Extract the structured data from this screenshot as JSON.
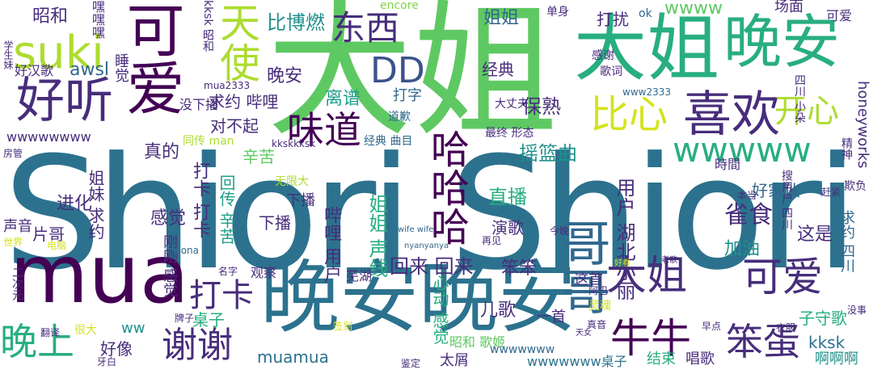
{
  "cloud": {
    "shiori_shiori": "Shiori Shiori",
    "da_jie_big": "大姐",
    "wan_an_tr": "晚安",
    "da_jie_tr": "大姐",
    "mua": "mua",
    "wan_an_wan_an": "晚安晚安",
    "ke_ai_v": "可爱",
    "hao_ting": "好听",
    "tian_shi": "天使",
    "suki": "suki",
    "xi_huan": "喜欢",
    "dong_xi": "东西",
    "dd": "DD",
    "wei_dao": "味道",
    "bi_xin": "比心",
    "kai_xin": "开心",
    "wwwww_mid": "wwwww",
    "ha_ha_ha": "哈哈哈",
    "ge_ge": "哥哥",
    "da_jie_low": "大姐",
    "ke_ai_low": "可爱",
    "niu_niu": "牛牛",
    "ben_dan": "笨蛋",
    "xie_xie": "谢谢",
    "wan_shang": "晚上",
    "da_ka": "打卡",
    "jie_jie": "姐姐",
    "da_rao": "打扰",
    "wwww_top": "wwww",
    "chang_mian": "场面",
    "ke_ai_top": "可爱",
    "bi_bo_ran": "比博燃",
    "zhao_he_tl": "昭和",
    "hei_hei_hei": "嘿嘿嘿",
    "awsl": "awsl",
    "wan_an_small": "晚安",
    "qiu_yue_bili": "求约 哔哩",
    "li_qing": "离谱",
    "da_zi": "打字",
    "bao_shu": "保熟",
    "dui_bu_qi": "对不起",
    "xin_ku": "辛苦",
    "zhen_de": "真的",
    "yao_lan_qu": "摇篮曲",
    "zhi_bo": "直播",
    "jin_hua": "进化",
    "gan_jue": "感觉",
    "da_ka_da_ka": "打卡 打卡",
    "hui_chuan": "回传 辛苦",
    "bili_yonghu": "哔哩 用户",
    "jie_jie_sheng_xian": "姐姐 声线",
    "hui_lai": "回来 回来",
    "ben_ben": "笨笨",
    "yong_hu_hubei": "用户 湖北小丽",
    "que_shi": "雀食",
    "zhe_shi": "这是",
    "jia_you": "加油",
    "zi_shou_hu": "子守歌",
    "qiu_yue_siyan": "求约 四川",
    "kksk": "kksk",
    "a_a_a": "啊啊啊",
    "chang_gui": "唱歌",
    "jie_shu": "结束",
    "tai_wu": "太屑",
    "ai_kuai": "儿歌",
    "xin_dong_gan_jue": "心动 感觉",
    "yan_ge": "演歌",
    "pian_ge": "片哥",
    "sheng_yin": "声音",
    "jie_mei_qiu_yue": "姐妹 求约",
    "hao_xiang": "好像",
    "ww_small": "ww",
    "muamua": "muamua",
    "wwwwwww_zhuo_zi": "wwwwwww桌子",
    "zhuo_zi": "桌子",
    "yi_shou": "一首",
    "zhe_shou": "这首",
    "xia_bo_small": "下播",
    "jing_dian": "经典",
    "hao_jia_huo": "好家伙",
    "shi_jian": "時間",
    "gan_xie": "感谢",
    "ge_ci": "歌词",
    "mei_hao": "美好",
    "hao_han_ge": "好汉歌",
    "kksk_zhao_he": "kksk 昭和",
    "shui_jiao": "睡觉",
    "mei_xiang": "没下播",
    "encore": "encore",
    "dan_shen": "单身",
    "ok": "ok",
    "honeyworks": "honeyworks",
    "wwwwwwww_left": "wwwwwwww",
    "tong_chuan": "同传 man",
    "kkskkksk": "kkskkksk",
    "jing_dian_qu_mu": "经典 曲目",
    "zui_zhong_xing_tai": "最终 形态",
    "wwww2333": "www2333",
    "mua2333": "mua2333",
    "tao_yan": "道歉",
    "wu_xian_da": "无限大",
    "gang_gang": "刚刚 感觉",
    "xia_bo_mid": "下播",
    "wu_hu": "芜湖",
    "guan_cha": "观察",
    "ming_zi": "名字",
    "jin_wan": "今晚",
    "pai_zi": "牌子",
    "zhao_he_ge_ji": "昭和 歌姬",
    "wwwwwww_b": "wwwwwww",
    "hao_kan": "好看",
    "ling_hun": "灵魂",
    "jian_ding": "鉴定",
    "hen_da": "很大",
    "da_zhang_fu": "大丈夫",
    "qing_xu": "情绪",
    "bu_xing": "不行",
    "jing_shen": "精神",
    "qi_fu": "欺负",
    "gan_jin": "赶紧",
    "ben_dang": "本当",
    "sou_suo_yonghu": "搜用户 四川",
    "he_shi": "合适",
    "wifi_wife": "wife wife",
    "nyanyanya": "nyanyanya",
    "zai_jian": "再见",
    "yi_hai": "幻想",
    "lao_ge": "老歌",
    "a_ba": "阿巴",
    "zhen_yin": "真音",
    "tian_nv": "天女",
    "yi_fu": "衣服",
    "mei_shi": "没事",
    "zao_dian": "早点",
    "si_chuan_xiao_duo": "四川 小朵",
    "xue_sheng": "学生妹",
    "fang_guan": "房管",
    "dian_nao": "电脑",
    "er_ci_yuan": "二次元",
    "mo_na": "mona",
    "fan_yi": "翻译",
    "ya_bai": "牙白",
    "qian_dao": "签到",
    "shi_jie": "世界"
  }
}
